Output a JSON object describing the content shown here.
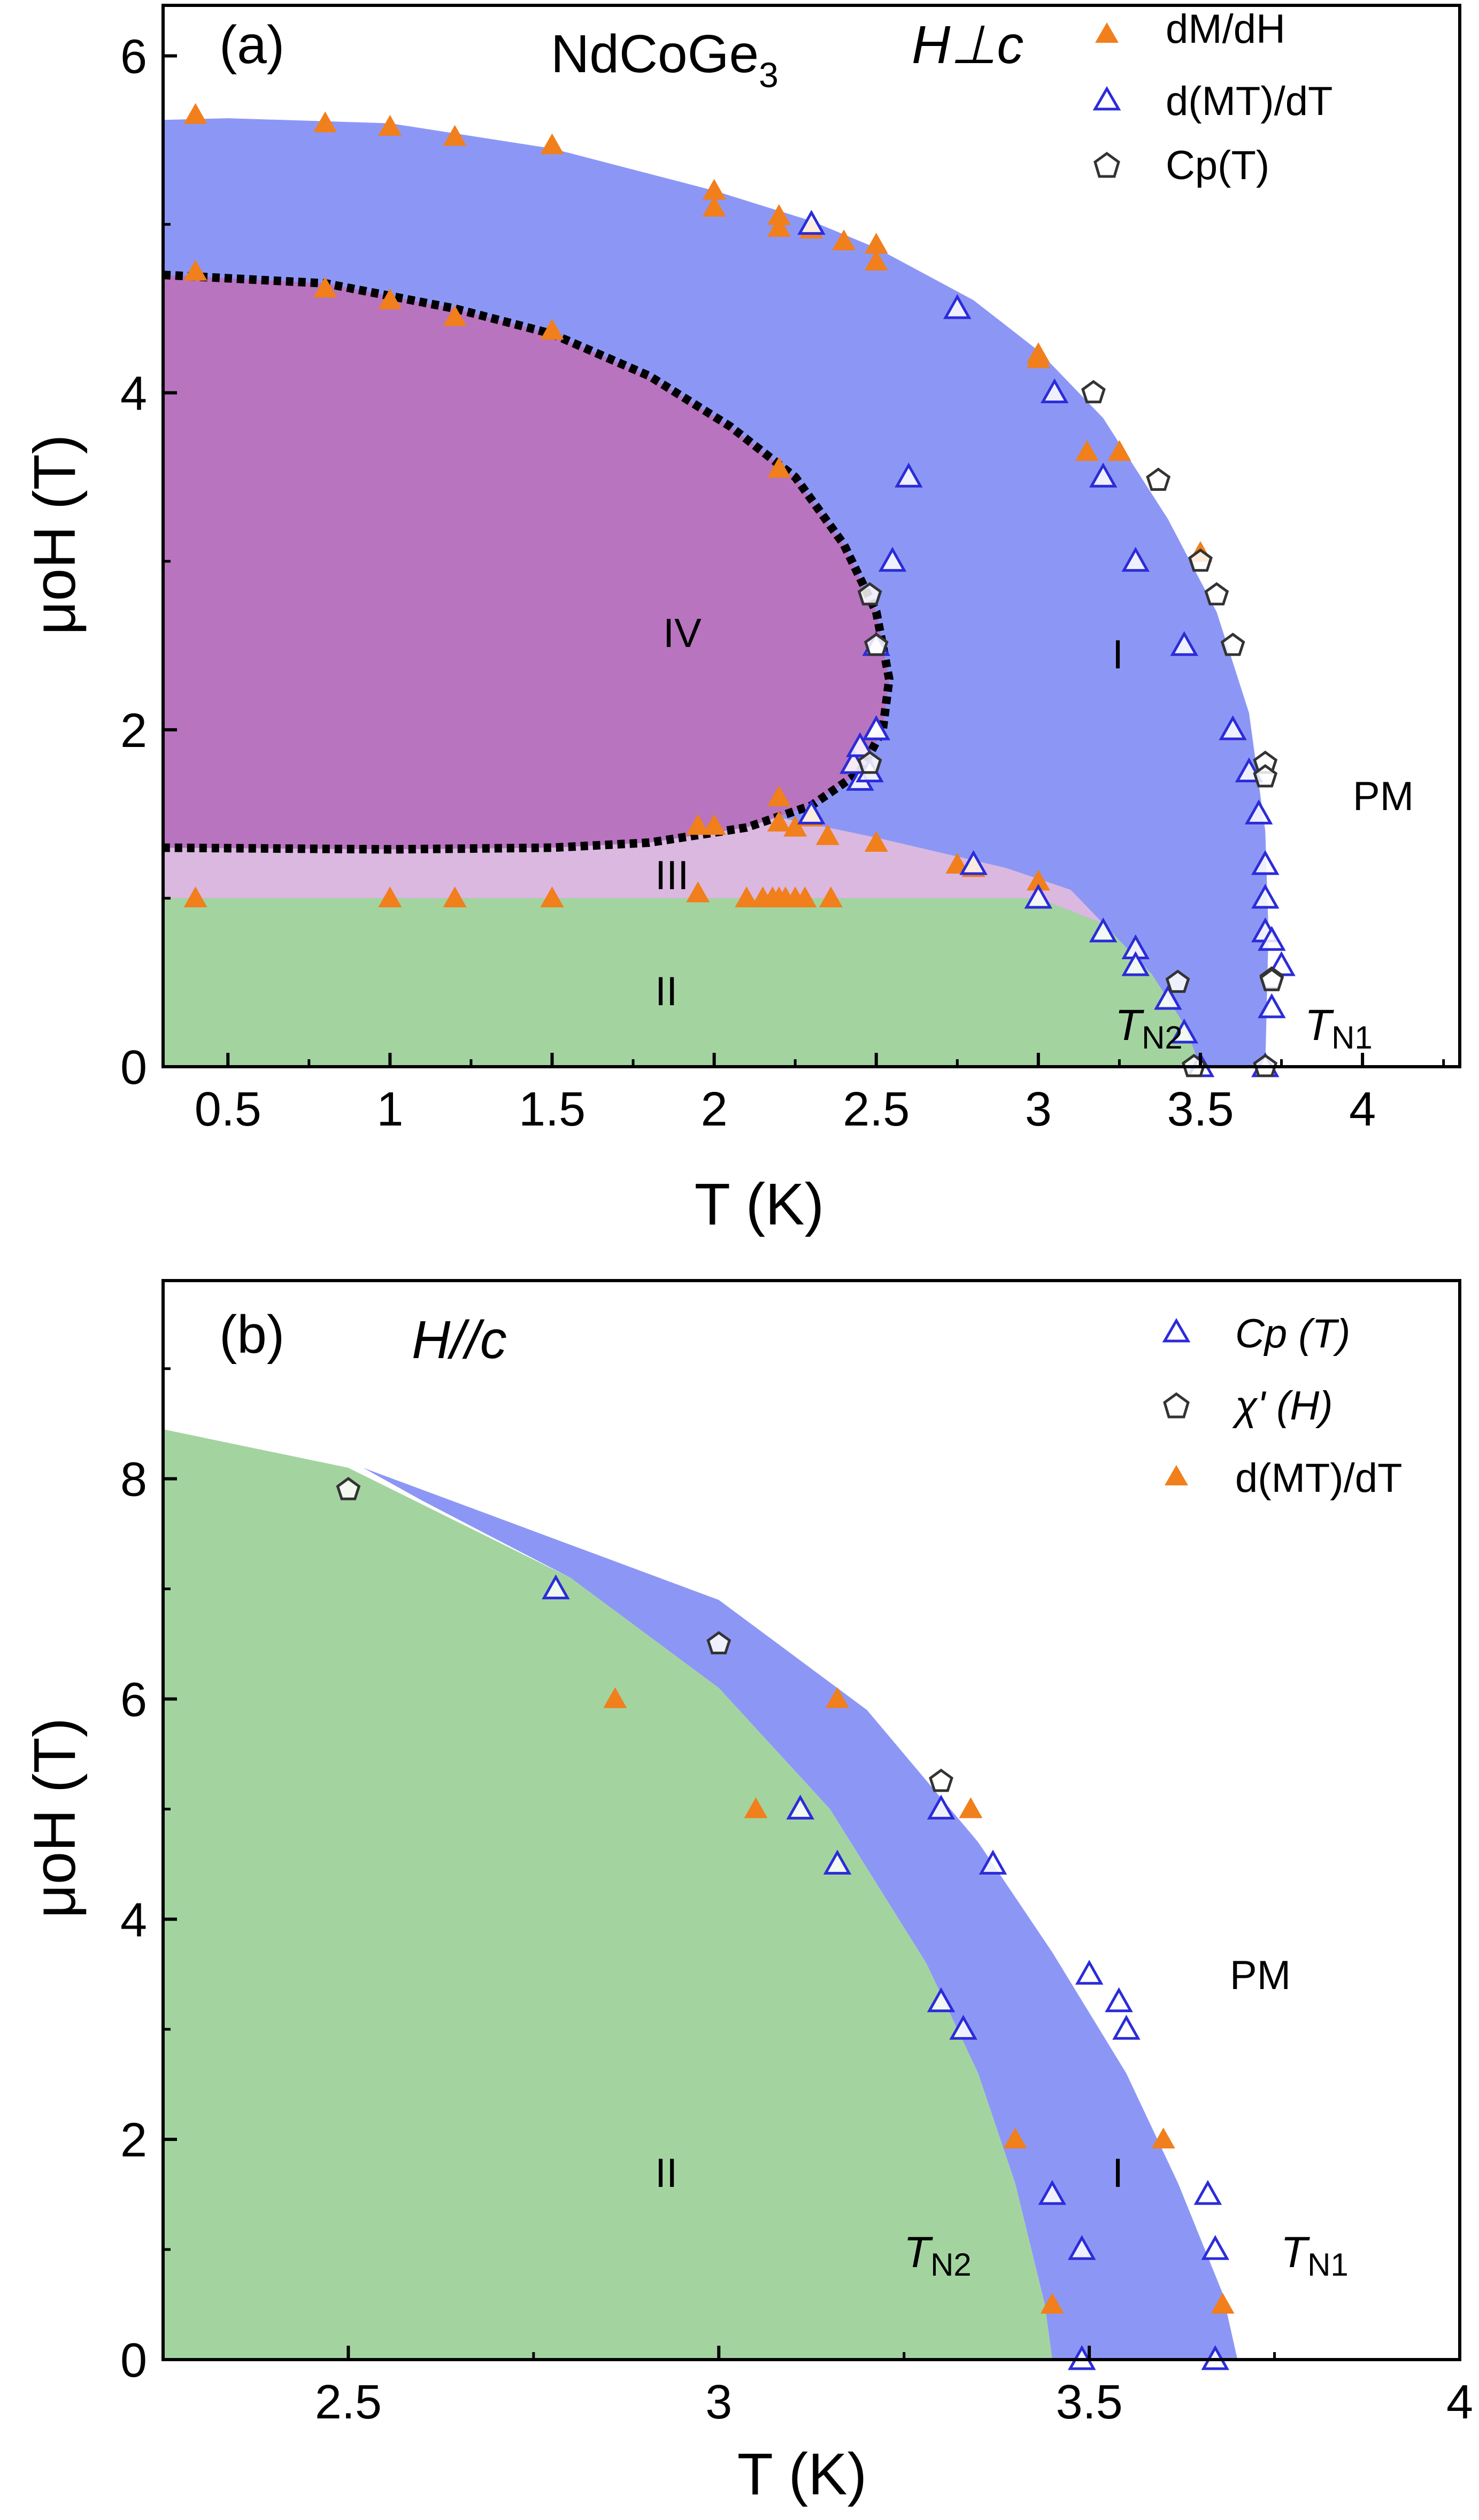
{
  "chart_data": [
    {
      "id": "a",
      "type": "scatter",
      "panel_label": "(a)",
      "compound": "NdCoGe",
      "compound_sub": "3",
      "field_label": "H⊥c",
      "xlabel": "T (K)",
      "ylabel": "μoH (T)",
      "xlim": [
        0.3,
        4.3
      ],
      "ylim": [
        0,
        6.3
      ],
      "xticks": [
        0.5,
        1,
        1.5,
        2,
        2.5,
        3,
        3.5,
        4
      ],
      "xtick_labels": [
        "0.5",
        "1",
        "1.5",
        "2",
        "2.5",
        "3",
        "3.5",
        "4"
      ],
      "yticks": [
        0,
        2,
        4,
        6
      ],
      "ytick_labels": [
        "0",
        "2",
        "4",
        "6"
      ],
      "legend": [
        "dM/dH",
        "d(MT)/dT",
        "Cp(T)"
      ],
      "region_labels": {
        "I": "I",
        "II": "II",
        "III": "III",
        "IV": "IV",
        "PM": "PM",
        "TN1": "TN1",
        "TN2": "TN2"
      },
      "regions": {
        "phase_I": [
          [
            0.3,
            0
          ],
          [
            0.3,
            5.62
          ],
          [
            0.5,
            5.63
          ],
          [
            1.0,
            5.6
          ],
          [
            1.5,
            5.45
          ],
          [
            2.0,
            5.2
          ],
          [
            2.3,
            5.02
          ],
          [
            2.5,
            4.86
          ],
          [
            2.8,
            4.55
          ],
          [
            3.0,
            4.25
          ],
          [
            3.2,
            3.85
          ],
          [
            3.4,
            3.25
          ],
          [
            3.55,
            2.7
          ],
          [
            3.65,
            2.1
          ],
          [
            3.7,
            1.4
          ],
          [
            3.71,
            0.8
          ],
          [
            3.7,
            0
          ]
        ],
        "phase_II": [
          [
            0.3,
            0
          ],
          [
            0.3,
            1.0
          ],
          [
            3.0,
            1.0
          ],
          [
            3.2,
            0.85
          ],
          [
            3.35,
            0.55
          ],
          [
            3.45,
            0.25
          ],
          [
            3.5,
            0
          ],
          [
            0.3,
            0
          ]
        ],
        "phase_III": [
          [
            0.3,
            1.0
          ],
          [
            0.3,
            1.3
          ],
          [
            1.0,
            1.3
          ],
          [
            1.5,
            1.32
          ],
          [
            2.0,
            1.42
          ],
          [
            2.2,
            1.48
          ],
          [
            2.5,
            1.36
          ],
          [
            2.9,
            1.18
          ],
          [
            3.1,
            1.05
          ],
          [
            3.2,
            0.85
          ],
          [
            3.0,
            1.0
          ]
        ],
        "phase_IV_boundary": [
          [
            0.3,
            4.7
          ],
          [
            0.8,
            4.65
          ],
          [
            1.2,
            4.5
          ],
          [
            1.5,
            4.35
          ],
          [
            1.8,
            4.1
          ],
          [
            2.05,
            3.8
          ],
          [
            2.25,
            3.5
          ],
          [
            2.4,
            3.1
          ],
          [
            2.5,
            2.7
          ],
          [
            2.54,
            2.3
          ],
          [
            2.52,
            2.0
          ],
          [
            2.45,
            1.75
          ],
          [
            2.3,
            1.55
          ],
          [
            2.1,
            1.42
          ],
          [
            1.8,
            1.33
          ],
          [
            1.5,
            1.3
          ],
          [
            1.0,
            1.29
          ],
          [
            0.3,
            1.3
          ]
        ]
      },
      "series": [
        {
          "name": "dM/dH",
          "marker": "filled-triangle",
          "color": "#f07f1c",
          "x": [
            0.4,
            0.8,
            1.0,
            1.2,
            1.5,
            2.0,
            2.0,
            2.2,
            2.2,
            2.3,
            2.4,
            2.5,
            2.5,
            3.0,
            3.0,
            3.15,
            3.25,
            3.5,
            0.4,
            0.8,
            1.0,
            1.2,
            1.5,
            2.2,
            2.3,
            2.2,
            2.0,
            1.95,
            2.2,
            2.25,
            2.35,
            2.5,
            2.75,
            2.8,
            3.0,
            0.4,
            1.0,
            1.2,
            1.5,
            1.95,
            2.1,
            2.15,
            2.18,
            2.2,
            2.22,
            2.25,
            2.28,
            2.36
          ],
          "y": [
            5.65,
            5.6,
            5.58,
            5.52,
            5.47,
            5.2,
            5.1,
            5.05,
            4.98,
            4.97,
            4.9,
            4.88,
            4.78,
            4.2,
            4.23,
            3.65,
            3.65,
            3.05,
            4.72,
            4.62,
            4.55,
            4.45,
            4.37,
            3.55,
            1.48,
            1.6,
            1.43,
            1.43,
            1.45,
            1.42,
            1.37,
            1.33,
            1.2,
            1.18,
            1.1,
            1.0,
            1.0,
            1.0,
            1.0,
            1.03,
            1.0,
            1.0,
            1.0,
            1.0,
            1.0,
            1.0,
            1.0,
            1.0
          ]
        },
        {
          "name": "d(MT)/dT",
          "marker": "open-triangle",
          "color": "#2b2bd9",
          "x": [
            2.3,
            2.75,
            3.05,
            3.2,
            3.3,
            3.45,
            3.6,
            3.65,
            3.68,
            3.7,
            3.7,
            3.7,
            3.72,
            3.75,
            3.72,
            3.7,
            3.2,
            3.3,
            3.3,
            3.4,
            3.45,
            3.5,
            2.3,
            2.45,
            2.5,
            2.5,
            2.55,
            2.6,
            2.8,
            3.0,
            2.43,
            2.45,
            2.5,
            2.48
          ],
          "y": [
            5.0,
            4.5,
            4.0,
            3.5,
            3.0,
            2.5,
            2.0,
            1.75,
            1.5,
            1.2,
            1.0,
            0.8,
            0.75,
            0.6,
            0.35,
            0.0,
            0.8,
            0.7,
            0.6,
            0.4,
            0.2,
            0.0,
            1.5,
            1.7,
            2.0,
            2.5,
            3.0,
            3.5,
            1.2,
            1.0,
            1.8,
            1.9,
            2.0,
            1.75
          ]
        },
        {
          "name": "Cp(T)",
          "marker": "open-pentagon",
          "color": "#333333",
          "x": [
            3.17,
            3.37,
            3.5,
            3.55,
            3.6,
            3.7,
            3.7,
            3.72,
            3.72,
            3.7,
            3.43,
            3.48,
            2.48,
            2.5,
            2.48
          ],
          "y": [
            4.0,
            3.48,
            3.0,
            2.8,
            2.5,
            1.8,
            1.72,
            0.52,
            0.51,
            0.0,
            0.5,
            0.0,
            2.8,
            2.5,
            1.8
          ]
        }
      ]
    },
    {
      "id": "b",
      "type": "scatter",
      "panel_label": "(b)",
      "field_label": "H//c",
      "xlabel": "T (K)",
      "ylabel": "μoH (T)",
      "xlim": [
        2.25,
        4.0
      ],
      "ylim": [
        0,
        9.8
      ],
      "xticks": [
        2.5,
        3,
        3.5,
        4
      ],
      "xtick_labels": [
        "2.5",
        "3",
        "3.5",
        "4"
      ],
      "yticks": [
        0,
        2,
        4,
        6,
        8
      ],
      "ytick_labels": [
        "0",
        "2",
        "4",
        "6",
        "8"
      ],
      "legend": [
        "Cp (T)",
        "χ' (H)",
        "d(MT)/dT"
      ],
      "region_labels": {
        "I": "I",
        "II": "II",
        "PM": "PM",
        "TN1": "TN1",
        "TN2": "TN2"
      },
      "regions": {
        "phase_II": [
          [
            2.25,
            0
          ],
          [
            2.25,
            8.45
          ],
          [
            2.5,
            8.1
          ],
          [
            2.8,
            7.1
          ],
          [
            3.0,
            6.1
          ],
          [
            3.15,
            5.0
          ],
          [
            3.28,
            3.6
          ],
          [
            3.35,
            2.6
          ],
          [
            3.4,
            1.6
          ],
          [
            3.44,
            0.5
          ],
          [
            3.45,
            0
          ]
        ],
        "phase_I": [
          [
            2.52,
            8.1
          ],
          [
            2.8,
            7.4
          ],
          [
            3.0,
            6.9
          ],
          [
            3.2,
            5.9
          ],
          [
            3.35,
            4.7
          ],
          [
            3.45,
            3.7
          ],
          [
            3.55,
            2.6
          ],
          [
            3.62,
            1.6
          ],
          [
            3.68,
            0.6
          ],
          [
            3.7,
            0
          ],
          [
            3.45,
            0
          ],
          [
            3.44,
            0.5
          ],
          [
            3.4,
            1.6
          ],
          [
            3.35,
            2.6
          ],
          [
            3.28,
            3.6
          ],
          [
            3.15,
            5.0
          ],
          [
            3.0,
            6.1
          ],
          [
            2.8,
            7.1
          ],
          [
            2.6,
            7.8
          ]
        ]
      },
      "series": [
        {
          "name": "Cp (T)",
          "marker": "open-triangle",
          "color": "#2b2bd9",
          "x": [
            2.78,
            3.11,
            3.16,
            3.3,
            3.3,
            3.33,
            3.37,
            3.45,
            3.49,
            3.49,
            3.5,
            3.54,
            3.55,
            3.66,
            3.67,
            3.67
          ],
          "y": [
            7.0,
            5.0,
            4.5,
            5.0,
            3.25,
            3.0,
            4.5,
            1.5,
            1.0,
            0.0,
            3.5,
            3.25,
            3.0,
            1.5,
            1.0,
            0.0
          ],
          "note": "x values paired in order with y"
        },
        {
          "name": "χ' (H)",
          "marker": "open-pentagon",
          "color": "#333333",
          "x": [
            2.5,
            3.0,
            3.3
          ],
          "y": [
            7.9,
            6.5,
            5.25
          ]
        },
        {
          "name": "d(MT)/dT",
          "marker": "filled-triangle",
          "color": "#f07f1c",
          "x": [
            2.86,
            3.05,
            3.16,
            3.34,
            3.4,
            3.45,
            3.6,
            3.68
          ],
          "y": [
            6.0,
            5.0,
            6.0,
            5.0,
            2.0,
            0.5,
            2.0,
            0.5
          ]
        }
      ]
    }
  ]
}
